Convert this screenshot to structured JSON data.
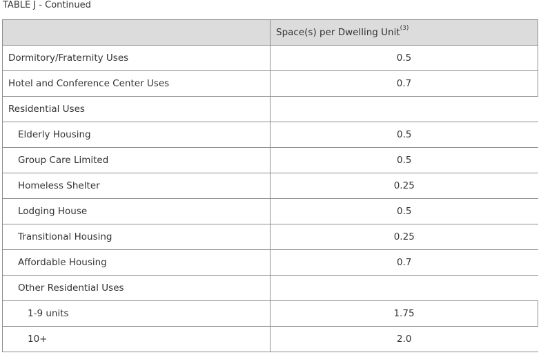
{
  "caption": "TABLE J - Continued",
  "header": {
    "col1": "",
    "col2": "Space(s) per Dwelling Unit",
    "col2_note": "(3)"
  },
  "rows": [
    {
      "label": "Dormitory/Fraternity Uses",
      "value": "0.5",
      "level": 0
    },
    {
      "label": "Hotel and Conference Center Uses",
      "value": "0.7",
      "level": 0
    },
    {
      "label": "Residential Uses",
      "value": "",
      "level": 0
    },
    {
      "label": "Elderly Housing",
      "value": "0.5",
      "level": 1
    },
    {
      "label": "Group Care Limited",
      "value": "0.5",
      "level": 1
    },
    {
      "label": "Homeless Shelter",
      "value": "0.25",
      "level": 1
    },
    {
      "label": "Lodging House",
      "value": "0.5",
      "level": 1
    },
    {
      "label": "Transitional Housing",
      "value": "0.25",
      "level": 1
    },
    {
      "label": "Affordable Housing",
      "value": "0.7",
      "level": 1
    },
    {
      "label": "Other Residential Uses",
      "value": "",
      "level": 1
    },
    {
      "label": "1-9 units",
      "value": "1.75",
      "level": 2
    },
    {
      "label": "10+",
      "value": "2.0",
      "level": 2
    }
  ]
}
